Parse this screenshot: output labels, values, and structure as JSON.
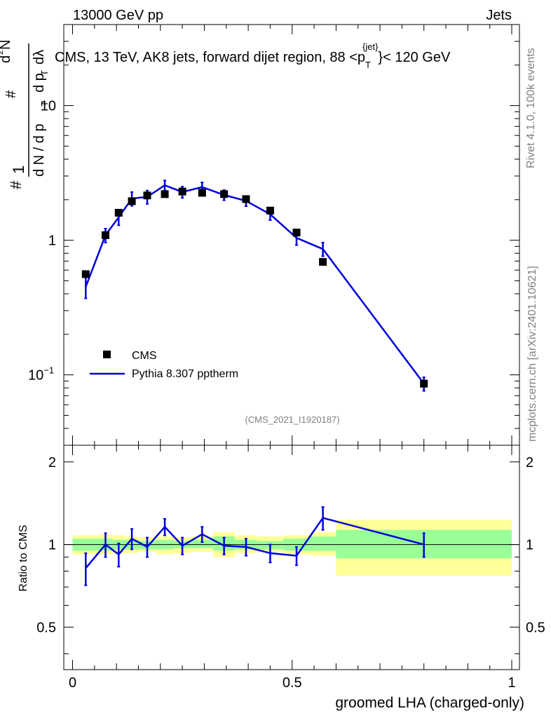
{
  "header": {
    "left": "13000 GeV pp",
    "right": "Jets",
    "plot_title": "CMS, 13 TeV, AK8 jets, forward dijet region, 88 <p",
    "plot_title_sub": "T",
    "plot_title_sup": "{jet}",
    "plot_title_end": "}< 120 GeV",
    "analysis_id": "(CMS_2021_I1920187)",
    "rivet_label": "Rivet 4.1.0,  100k events",
    "mcplots_label": "mcplots.cern.ch [arXiv:2401.10621]"
  },
  "colors": {
    "mc": "#0000dd",
    "data": "#000000",
    "band_inner": "#99ff99",
    "band_outer": "#ffff99"
  },
  "chart_data": [
    {
      "type": "scatter",
      "panel": "main",
      "title": "CMS, 13 TeV, AK8 jets, forward dijet region, 88 < pT{jet} < 120 GeV",
      "xlabel": "groomed LHA (charged-only)",
      "ylabel_parts": [
        "#",
        "1",
        "d N / d p",
        "T",
        "#",
        "d p",
        "T",
        "d",
        "2",
        "N",
        "dλ"
      ],
      "xlim": [
        0,
        1
      ],
      "ylim": [
        0.03,
        40
      ],
      "yscale": "log",
      "yticks": [
        {
          "v": 10,
          "label": "10"
        },
        {
          "v": 1,
          "label": "1"
        },
        {
          "v": 0.1,
          "label": "10",
          "exp": "−1"
        }
      ],
      "legend": {
        "position": "bottom-left",
        "entries": [
          "CMS",
          "Pythia 8.307 pptherm"
        ]
      },
      "series": [
        {
          "name": "CMS",
          "x": [
            0.03,
            0.075,
            0.105,
            0.135,
            0.17,
            0.21,
            0.25,
            0.295,
            0.345,
            0.395,
            0.45,
            0.51,
            0.57,
            0.8
          ],
          "y": [
            0.56,
            1.09,
            1.6,
            1.95,
            2.15,
            2.2,
            2.3,
            2.25,
            2.2,
            2.02,
            1.66,
            1.14,
            0.69,
            0.086
          ]
        },
        {
          "name": "Pythia 8.307 pptherm",
          "x": [
            0.03,
            0.075,
            0.105,
            0.135,
            0.17,
            0.21,
            0.25,
            0.295,
            0.345,
            0.395,
            0.45,
            0.51,
            0.57,
            0.8
          ],
          "y": [
            0.45,
            1.09,
            1.48,
            2.04,
            2.1,
            2.56,
            2.28,
            2.48,
            2.17,
            1.96,
            1.56,
            1.04,
            0.86,
            0.086
          ],
          "yerr": [
            0.08,
            0.13,
            0.19,
            0.24,
            0.24,
            0.22,
            0.22,
            0.21,
            0.19,
            0.17,
            0.15,
            0.12,
            0.1,
            0.01
          ]
        }
      ]
    },
    {
      "type": "line",
      "panel": "ratio",
      "ylabel": "Ratio to CMS",
      "xlabel": "groomed LHA (charged-only)",
      "xlim": [
        0,
        1
      ],
      "ylim": [
        0.35,
        2.3
      ],
      "yscale": "log",
      "xticks": [
        {
          "v": 0,
          "label": "0"
        },
        {
          "v": 0.5,
          "label": "0.5"
        },
        {
          "v": 1,
          "label": "1"
        }
      ],
      "yticks": [
        {
          "v": 2,
          "label": "2"
        },
        {
          "v": 1,
          "label": "1"
        },
        {
          "v": 0.5,
          "label": "0.5"
        }
      ],
      "bands": [
        {
          "x0": 0.0,
          "x1": 0.06,
          "inner": [
            0.95,
            1.05
          ],
          "outer": [
            0.92,
            1.08
          ]
        },
        {
          "x0": 0.06,
          "x1": 0.09,
          "inner": [
            0.95,
            1.05
          ],
          "outer": [
            0.92,
            1.09
          ]
        },
        {
          "x0": 0.09,
          "x1": 0.12,
          "inner": [
            0.96,
            1.04
          ],
          "outer": [
            0.93,
            1.08
          ]
        },
        {
          "x0": 0.12,
          "x1": 0.15,
          "inner": [
            0.96,
            1.04
          ],
          "outer": [
            0.93,
            1.07
          ]
        },
        {
          "x0": 0.15,
          "x1": 0.19,
          "inner": [
            0.96,
            1.03
          ],
          "outer": [
            0.94,
            1.06
          ]
        },
        {
          "x0": 0.19,
          "x1": 0.23,
          "inner": [
            0.96,
            1.04
          ],
          "outer": [
            0.92,
            1.07
          ]
        },
        {
          "x0": 0.23,
          "x1": 0.27,
          "inner": [
            0.97,
            1.03
          ],
          "outer": [
            0.93,
            1.06
          ]
        },
        {
          "x0": 0.27,
          "x1": 0.32,
          "inner": [
            0.97,
            1.04
          ],
          "outer": [
            0.94,
            1.07
          ]
        },
        {
          "x0": 0.32,
          "x1": 0.37,
          "inner": [
            0.95,
            1.07
          ],
          "outer": [
            0.9,
            1.11
          ]
        },
        {
          "x0": 0.37,
          "x1": 0.42,
          "inner": [
            0.96,
            1.04
          ],
          "outer": [
            0.93,
            1.08
          ]
        },
        {
          "x0": 0.42,
          "x1": 0.48,
          "inner": [
            0.96,
            1.03
          ],
          "outer": [
            0.94,
            1.07
          ]
        },
        {
          "x0": 0.48,
          "x1": 0.54,
          "inner": [
            0.95,
            1.05
          ],
          "outer": [
            0.92,
            1.08
          ]
        },
        {
          "x0": 0.54,
          "x1": 0.6,
          "inner": [
            0.95,
            1.07
          ],
          "outer": [
            0.91,
            1.11
          ]
        },
        {
          "x0": 0.6,
          "x1": 1.0,
          "inner": [
            0.89,
            1.13
          ],
          "outer": [
            0.77,
            1.23
          ]
        }
      ],
      "series": [
        {
          "name": "Pythia 8.307 pptherm / CMS",
          "x": [
            0.03,
            0.075,
            0.105,
            0.135,
            0.17,
            0.21,
            0.25,
            0.295,
            0.345,
            0.395,
            0.45,
            0.51,
            0.57,
            0.8
          ],
          "y": [
            0.82,
            1.0,
            0.92,
            1.05,
            0.98,
            1.16,
            0.99,
            1.09,
            0.99,
            0.98,
            0.93,
            0.91,
            1.25,
            1.0
          ],
          "yerr": [
            0.11,
            0.1,
            0.09,
            0.09,
            0.08,
            0.08,
            0.07,
            0.07,
            0.07,
            0.07,
            0.07,
            0.07,
            0.12,
            0.1
          ]
        }
      ]
    }
  ]
}
